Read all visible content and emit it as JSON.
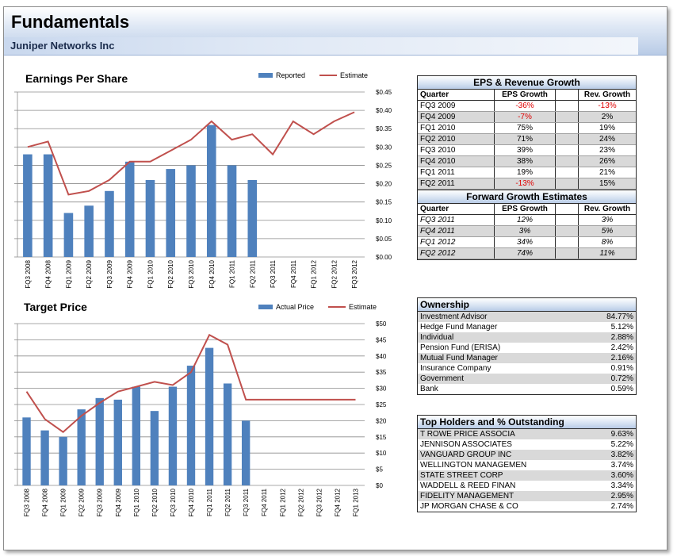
{
  "header": {
    "title": "Fundamentals",
    "company": "Juniper Networks Inc"
  },
  "colors": {
    "bar": "#4f81bd",
    "line": "#c0504d",
    "negative": "#e00000"
  },
  "chart_data": [
    {
      "type": "bar",
      "title": "Earnings Per Share",
      "legend": [
        "Reported",
        "Estimate"
      ],
      "legend_position": "top-right",
      "grid": true,
      "ylim": [
        0,
        0.45
      ],
      "yticks": [
        "$0.00",
        "$0.05",
        "$0.10",
        "$0.15",
        "$0.20",
        "$0.25",
        "$0.30",
        "$0.35",
        "$0.40",
        "$0.45"
      ],
      "categories": [
        "FQ3 2008",
        "FQ4 2008",
        "FQ1 2009",
        "FQ2 2009",
        "FQ3 2009",
        "FQ4 2009",
        "FQ1 2010",
        "FQ2 2010",
        "FQ3 2010",
        "FQ4 2010",
        "FQ1 2011",
        "FQ2 2011",
        "FQ3 2011",
        "FQ4 2011",
        "FQ1 2012",
        "FQ2 2012",
        "FQ3 2012"
      ],
      "series": [
        {
          "name": "Reported",
          "type": "bar",
          "values": [
            0.28,
            0.28,
            0.12,
            0.14,
            0.18,
            0.26,
            0.21,
            0.24,
            0.25,
            0.36,
            0.25,
            0.21,
            null,
            null,
            null,
            null,
            null
          ]
        },
        {
          "name": "Estimate",
          "type": "line",
          "values": [
            0.3,
            0.315,
            0.17,
            0.18,
            0.21,
            0.26,
            0.26,
            0.29,
            0.32,
            0.37,
            0.32,
            0.335,
            0.28,
            0.37,
            0.335,
            0.37,
            0.395
          ]
        }
      ]
    },
    {
      "type": "bar",
      "title": "Target Price",
      "legend": [
        "Actual Price",
        "Estimate"
      ],
      "legend_position": "top-right",
      "grid": true,
      "ylim": [
        0,
        50
      ],
      "yticks": [
        "$0",
        "$5",
        "$10",
        "$15",
        "$20",
        "$25",
        "$30",
        "$35",
        "$40",
        "$45",
        "$50"
      ],
      "categories": [
        "FQ3 2008",
        "FQ4 2008",
        "FQ1 2009",
        "FQ2 2009",
        "FQ3 2009",
        "FQ4 2009",
        "FQ1 2010",
        "FQ2 2010",
        "FQ3 2010",
        "FQ4 2010",
        "FQ1 2011",
        "FQ2 2011",
        "FQ3 2011",
        "FQ4 2011",
        "FQ1 2012",
        "FQ2 2012",
        "FQ3 2012",
        "FQ4 2012",
        "FQ1 2013"
      ],
      "series": [
        {
          "name": "Actual Price",
          "type": "bar",
          "values": [
            21,
            17,
            15,
            23.5,
            27,
            26.5,
            30.5,
            23,
            30.5,
            37,
            42.5,
            31.5,
            20,
            null,
            null,
            null,
            null,
            null,
            null
          ]
        },
        {
          "name": "Estimate",
          "type": "line",
          "values": [
            29,
            20.5,
            16.5,
            21.5,
            25.5,
            29,
            30.5,
            32,
            31,
            35,
            46.5,
            43.5,
            26.5,
            26.5,
            26.5,
            26.5,
            26.5,
            26.5,
            26.5
          ]
        }
      ]
    }
  ],
  "eps_growth": {
    "title": "EPS & Revenue Growth",
    "headers": [
      "Quarter",
      "EPS Growth",
      "Rev. Growth"
    ],
    "rows": [
      {
        "quarter": "FQ3 2009",
        "eps": "-36%",
        "rev": "-13%",
        "eps_neg": true,
        "rev_neg": true
      },
      {
        "quarter": "FQ4 2009",
        "eps": "-7%",
        "rev": "2%",
        "eps_neg": true,
        "rev_neg": false
      },
      {
        "quarter": "FQ1 2010",
        "eps": "75%",
        "rev": "19%",
        "eps_neg": false,
        "rev_neg": false
      },
      {
        "quarter": "FQ2 2010",
        "eps": "71%",
        "rev": "24%",
        "eps_neg": false,
        "rev_neg": false
      },
      {
        "quarter": "FQ3 2010",
        "eps": "39%",
        "rev": "23%",
        "eps_neg": false,
        "rev_neg": false
      },
      {
        "quarter": "FQ4 2010",
        "eps": "38%",
        "rev": "26%",
        "eps_neg": false,
        "rev_neg": false
      },
      {
        "quarter": "FQ1 2011",
        "eps": "19%",
        "rev": "21%",
        "eps_neg": false,
        "rev_neg": false
      },
      {
        "quarter": "FQ2 2011",
        "eps": "-13%",
        "rev": "15%",
        "eps_neg": true,
        "rev_neg": false
      }
    ]
  },
  "forward_growth": {
    "title": "Forward Growth Estimates",
    "headers": [
      "Quarter",
      "EPS Growth",
      "Rev. Growth"
    ],
    "rows": [
      {
        "quarter": "FQ3 2011",
        "eps": "12%",
        "rev": "3%"
      },
      {
        "quarter": "FQ4 2011",
        "eps": "3%",
        "rev": "5%"
      },
      {
        "quarter": "FQ1 2012",
        "eps": "34%",
        "rev": "8%"
      },
      {
        "quarter": "FQ2 2012",
        "eps": "74%",
        "rev": "11%"
      }
    ]
  },
  "ownership": {
    "title": "Ownership",
    "rows": [
      {
        "label": "Investment Advisor",
        "value": "84.77%"
      },
      {
        "label": "Hedge Fund Manager",
        "value": "5.12%"
      },
      {
        "label": "Individual",
        "value": "2.88%"
      },
      {
        "label": "Pension Fund (ERISA)",
        "value": "2.42%"
      },
      {
        "label": "Mutual Fund Manager",
        "value": "2.16%"
      },
      {
        "label": "Insurance Company",
        "value": "0.91%"
      },
      {
        "label": "Government",
        "value": "0.72%"
      },
      {
        "label": "Bank",
        "value": "0.59%"
      }
    ]
  },
  "holders": {
    "title": "Top Holders and % Outstanding",
    "rows": [
      {
        "label": "T ROWE PRICE ASSOCIA",
        "value": "9.63%"
      },
      {
        "label": "JENNISON ASSOCIATES",
        "value": "5.22%"
      },
      {
        "label": "VANGUARD GROUP INC",
        "value": "3.82%"
      },
      {
        "label": "WELLINGTON MANAGEMEN",
        "value": "3.74%"
      },
      {
        "label": "STATE STREET CORP",
        "value": "3.60%"
      },
      {
        "label": "WADDELL & REED FINAN",
        "value": "3.34%"
      },
      {
        "label": "FIDELITY MANAGEMENT",
        "value": "2.95%"
      },
      {
        "label": "JP MORGAN CHASE & CO",
        "value": "2.74%"
      }
    ]
  }
}
